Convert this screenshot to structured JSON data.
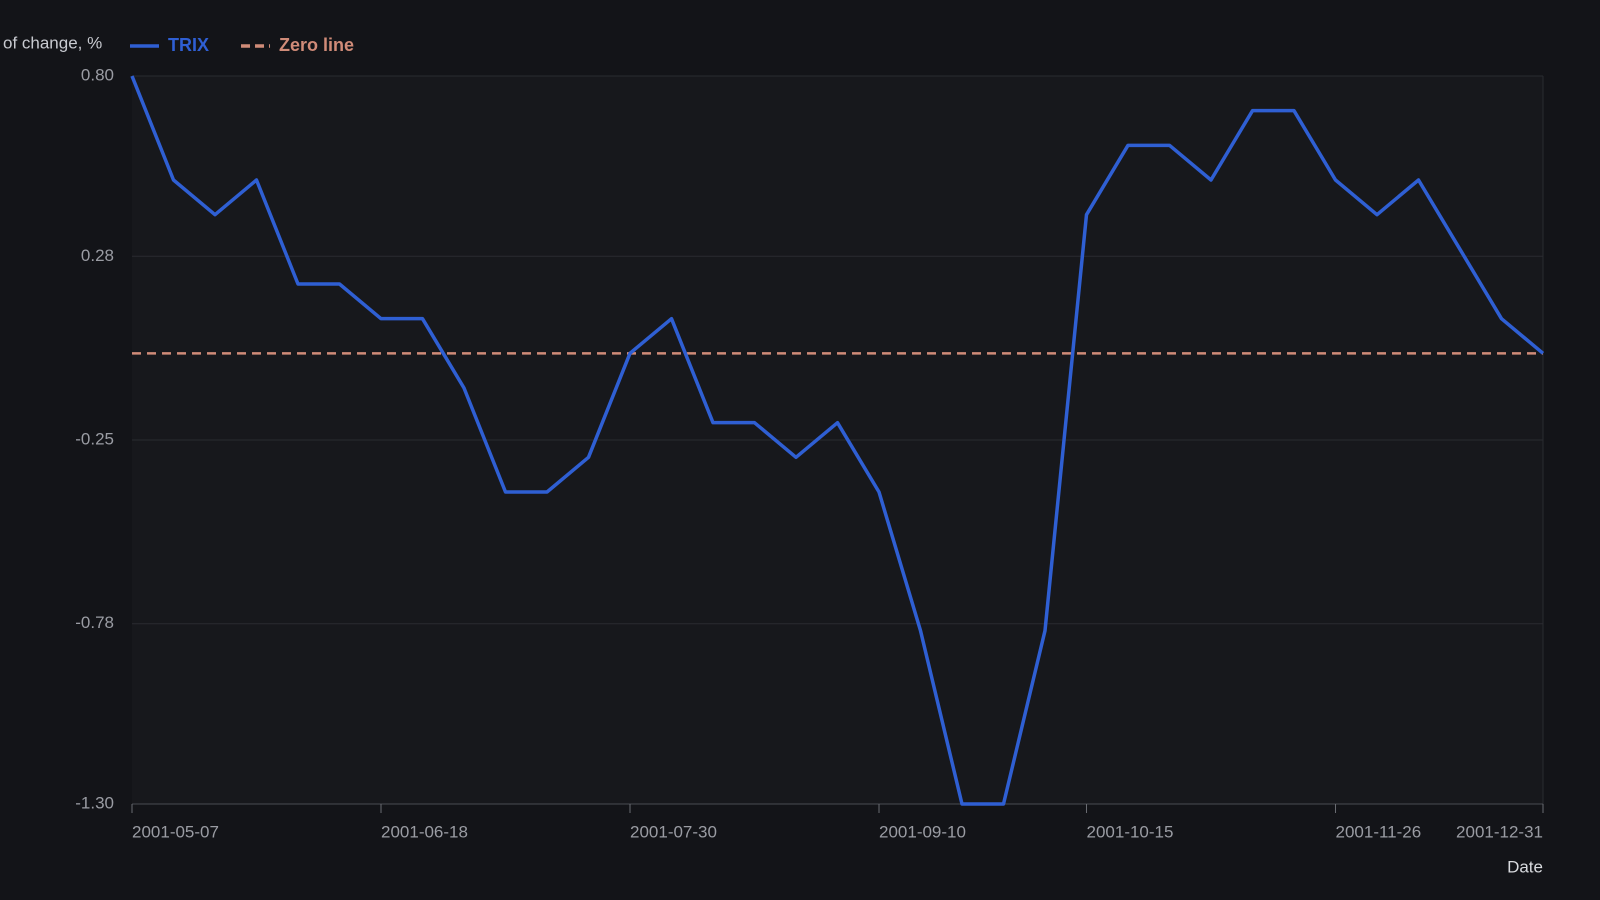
{
  "chart_data": {
    "type": "line",
    "y_label": "of change, %",
    "x_label": "Date",
    "x": [
      "2001-05-07",
      "2001-05-14",
      "2001-05-21",
      "2001-05-28",
      "2001-06-04",
      "2001-06-11",
      "2001-06-18",
      "2001-06-25",
      "2001-07-02",
      "2001-07-09",
      "2001-07-16",
      "2001-07-23",
      "2001-07-30",
      "2001-08-06",
      "2001-08-13",
      "2001-08-20",
      "2001-08-27",
      "2001-09-03",
      "2001-09-10",
      "2001-09-17",
      "2001-09-24",
      "2001-10-01",
      "2001-10-08",
      "2001-10-15",
      "2001-10-22",
      "2001-10-29",
      "2001-11-05",
      "2001-11-12",
      "2001-11-19",
      "2001-11-26",
      "2001-12-03",
      "2001-12-10",
      "2001-12-17",
      "2001-12-24",
      "2001-12-31"
    ],
    "series": [
      {
        "name": "TRIX",
        "color": "#2f5fd3",
        "values": [
          0.8,
          0.5,
          0.4,
          0.5,
          0.2,
          0.2,
          0.1,
          0.1,
          -0.1,
          -0.4,
          -0.4,
          -0.3,
          0.0,
          0.1,
          -0.2,
          -0.2,
          -0.3,
          -0.2,
          -0.4,
          -0.8,
          -1.3,
          -1.3,
          -0.8,
          0.4,
          0.6,
          0.6,
          0.5,
          0.7,
          0.7,
          0.5,
          0.4,
          0.5,
          0.3,
          0.1,
          0.0
        ]
      }
    ],
    "reference_lines": [
      {
        "name": "Zero line",
        "value": 0,
        "color": "#d08b78",
        "dashed": true
      }
    ],
    "xlim": [
      "2001-05-07",
      "2001-12-31"
    ],
    "xticks": [
      "2001-05-07",
      "2001-06-18",
      "2001-07-30",
      "2001-09-10",
      "2001-10-15",
      "2001-11-26",
      "2001-12-31"
    ],
    "ylim": [
      -1.3,
      0.8
    ],
    "yticks": [
      {
        "value": -1.3,
        "label": "-1.30"
      },
      -0.78,
      -0.25,
      0.28,
      {
        "value": 0.8,
        "label": "0.80"
      }
    ],
    "grid": true
  }
}
